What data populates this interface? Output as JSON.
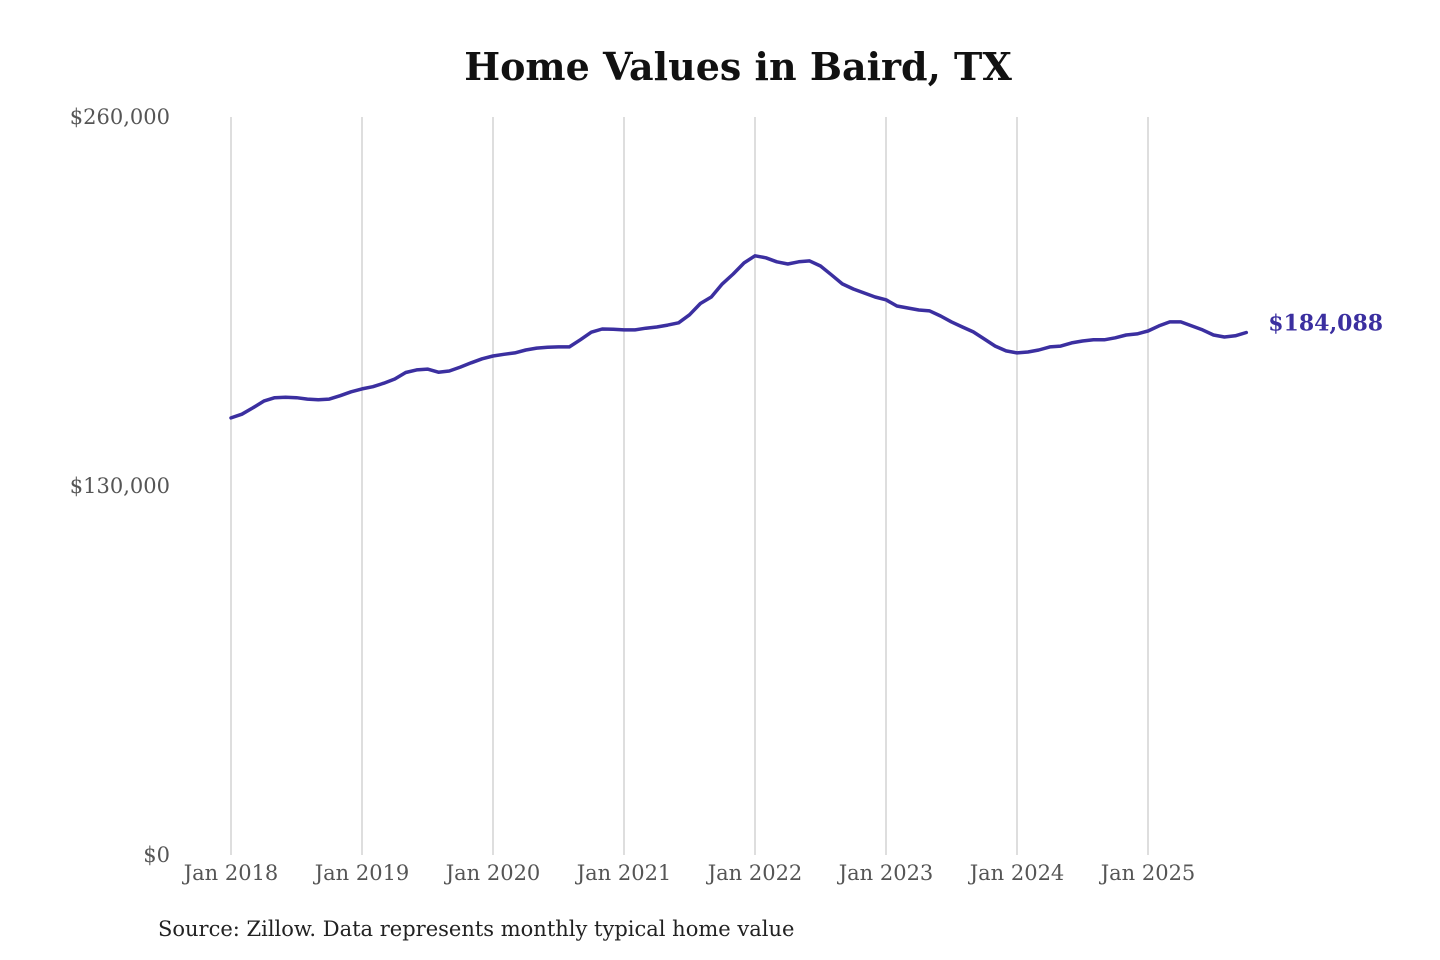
{
  "chart_data": {
    "type": "line",
    "title": "Home Values in Baird, TX",
    "source": "Source: Zillow. Data represents monthly typical home value",
    "xlabel": "",
    "ylabel": "",
    "ylim": [
      0,
      260000
    ],
    "y_ticks": [
      0,
      130000,
      260000
    ],
    "y_tick_labels": [
      "$0",
      "$130,000",
      "$260,000"
    ],
    "x_tick_labels": [
      "Jan 2018",
      "Jan 2019",
      "Jan 2020",
      "Jan 2021",
      "Jan 2022",
      "Jan 2023",
      "Jan 2024",
      "Jan 2025"
    ],
    "x_start": "Jan 2018",
    "x_end": "Oct 2025",
    "grid": "vertical",
    "line_color": "#3b2fa0",
    "end_label": "$184,088",
    "series": [
      {
        "name": "Typical home value",
        "values": [
          154000,
          155300,
          157500,
          159900,
          161100,
          161300,
          161100,
          160600,
          160400,
          160600,
          161800,
          163200,
          164200,
          165000,
          166200,
          167700,
          170000,
          170900,
          171200,
          170100,
          170500,
          171900,
          173400,
          174800,
          175800,
          176400,
          176900,
          177900,
          178600,
          178900,
          179000,
          179000,
          181500,
          184200,
          185300,
          185200,
          185000,
          185000,
          185600,
          186000,
          186700,
          187500,
          190300,
          194300,
          196600,
          201200,
          204700,
          208600,
          211100,
          210400,
          209000,
          208200,
          209000,
          209300,
          207500,
          204400,
          201200,
          199400,
          198000,
          196600,
          195600,
          193400,
          192700,
          192000,
          191700,
          189900,
          187800,
          186000,
          184300,
          181800,
          179300,
          177600,
          176900,
          177200,
          177900,
          179000,
          179300,
          180400,
          181100,
          181500,
          181500,
          182200,
          183200,
          183600,
          184600,
          186400,
          187800,
          187800,
          186400,
          185000,
          183200,
          182500,
          182900,
          184088
        ]
      }
    ]
  }
}
